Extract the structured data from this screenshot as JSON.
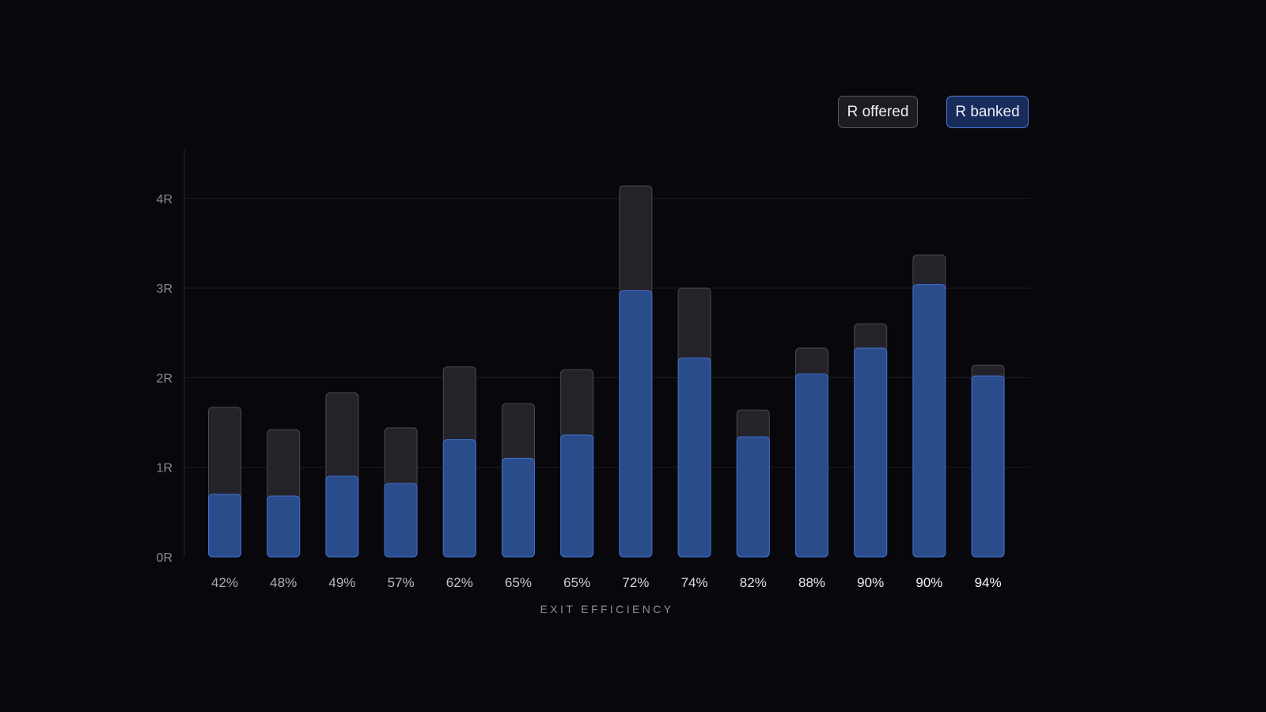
{
  "chart_data": {
    "type": "bar",
    "xlabel": "EXIT EFFICIENCY",
    "ylabel": "",
    "ylim": [
      0,
      4.5
    ],
    "yticks": [
      {
        "value": 0,
        "label": "0R"
      },
      {
        "value": 1,
        "label": "1R"
      },
      {
        "value": 2,
        "label": "2R"
      },
      {
        "value": 3,
        "label": "3R"
      },
      {
        "value": 4,
        "label": "4R"
      }
    ],
    "grid": true,
    "legend_placement": "top-right",
    "categories": [
      "42%",
      "48%",
      "49%",
      "57%",
      "62%",
      "65%",
      "65%",
      "72%",
      "74%",
      "82%",
      "88%",
      "90%",
      "90%",
      "94%"
    ],
    "series": [
      {
        "name": "R offered",
        "color": "#242329",
        "values": [
          1.67,
          1.42,
          1.83,
          1.44,
          2.12,
          1.71,
          2.09,
          4.14,
          3.0,
          1.64,
          2.33,
          2.6,
          3.37,
          2.14
        ]
      },
      {
        "name": "R banked",
        "color": "#2a4c8a",
        "values": [
          0.7,
          0.68,
          0.9,
          0.82,
          1.31,
          1.1,
          1.36,
          2.97,
          2.22,
          1.34,
          2.04,
          2.33,
          3.04,
          2.02
        ]
      }
    ]
  }
}
